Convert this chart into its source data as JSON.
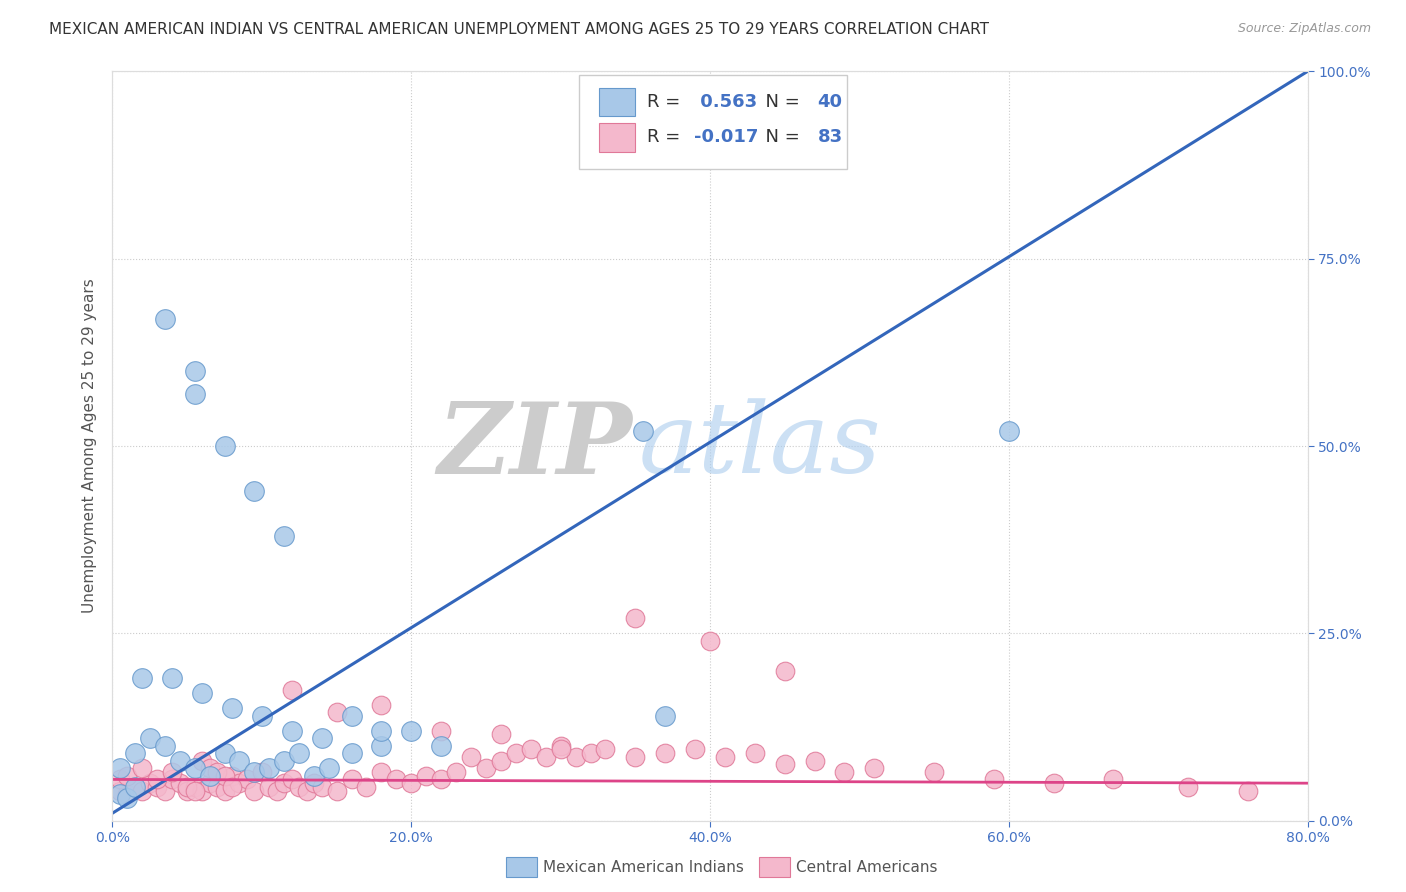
{
  "title": "MEXICAN AMERICAN INDIAN VS CENTRAL AMERICAN UNEMPLOYMENT AMONG AGES 25 TO 29 YEARS CORRELATION CHART",
  "source": "Source: ZipAtlas.com",
  "ylabel": "Unemployment Among Ages 25 to 29 years",
  "xlim": [
    0.0,
    0.8
  ],
  "ylim": [
    0.0,
    1.0
  ],
  "xtick_labels": [
    "0.0%",
    "20.0%",
    "40.0%",
    "60.0%",
    "80.0%"
  ],
  "xtick_vals": [
    0.0,
    0.2,
    0.4,
    0.6,
    0.8
  ],
  "ytick_labels": [
    "0.0%",
    "25.0%",
    "50.0%",
    "75.0%",
    "100.0%"
  ],
  "ytick_vals": [
    0.0,
    0.25,
    0.5,
    0.75,
    1.0
  ],
  "blue_color": "#a8c8e8",
  "blue_edge_color": "#6699cc",
  "pink_color": "#f4b8cc",
  "pink_edge_color": "#e07898",
  "blue_line_color": "#3366bb",
  "pink_line_color": "#dd4488",
  "R_blue": 0.563,
  "N_blue": 40,
  "R_pink": -0.017,
  "N_pink": 83,
  "legend_label_blue": "Mexican American Indians",
  "legend_label_pink": "Central Americans",
  "watermark_zip": "ZIP",
  "watermark_atlas": "atlas",
  "background_color": "#ffffff",
  "title_fontsize": 11,
  "axis_label_fontsize": 11,
  "tick_fontsize": 10,
  "blue_line_x0": 0.0,
  "blue_line_y0": 0.01,
  "blue_line_x1": 0.8,
  "blue_line_y1": 1.0,
  "pink_line_x0": 0.0,
  "pink_line_y0": 0.055,
  "pink_line_x1": 0.8,
  "pink_line_y1": 0.05,
  "blue_x": [
    0.035,
    0.055,
    0.055,
    0.075,
    0.095,
    0.115,
    0.02,
    0.04,
    0.06,
    0.08,
    0.1,
    0.12,
    0.14,
    0.16,
    0.18,
    0.005,
    0.015,
    0.025,
    0.035,
    0.045,
    0.055,
    0.065,
    0.075,
    0.085,
    0.095,
    0.105,
    0.115,
    0.125,
    0.135,
    0.145,
    0.16,
    0.18,
    0.2,
    0.22,
    0.355,
    0.37,
    0.005,
    0.01,
    0.6,
    0.015
  ],
  "blue_y": [
    0.67,
    0.6,
    0.57,
    0.5,
    0.44,
    0.38,
    0.19,
    0.19,
    0.17,
    0.15,
    0.14,
    0.12,
    0.11,
    0.14,
    0.1,
    0.07,
    0.09,
    0.11,
    0.1,
    0.08,
    0.07,
    0.06,
    0.09,
    0.08,
    0.065,
    0.07,
    0.08,
    0.09,
    0.06,
    0.07,
    0.09,
    0.12,
    0.12,
    0.1,
    0.52,
    0.14,
    0.035,
    0.03,
    0.52,
    0.045
  ],
  "pink_x": [
    0.005,
    0.01,
    0.015,
    0.02,
    0.025,
    0.03,
    0.035,
    0.04,
    0.045,
    0.05,
    0.055,
    0.06,
    0.065,
    0.07,
    0.075,
    0.08,
    0.085,
    0.09,
    0.095,
    0.1,
    0.105,
    0.11,
    0.115,
    0.12,
    0.125,
    0.13,
    0.135,
    0.14,
    0.15,
    0.16,
    0.17,
    0.18,
    0.19,
    0.2,
    0.21,
    0.22,
    0.23,
    0.24,
    0.25,
    0.26,
    0.27,
    0.28,
    0.29,
    0.3,
    0.31,
    0.32,
    0.33,
    0.35,
    0.37,
    0.39,
    0.41,
    0.43,
    0.45,
    0.47,
    0.49,
    0.51,
    0.55,
    0.59,
    0.63,
    0.67,
    0.72,
    0.76,
    0.005,
    0.01,
    0.02,
    0.03,
    0.04,
    0.05,
    0.055,
    0.06,
    0.065,
    0.07,
    0.075,
    0.08,
    0.12,
    0.15,
    0.18,
    0.22,
    0.26,
    0.3,
    0.35,
    0.4,
    0.45
  ],
  "pink_y": [
    0.04,
    0.035,
    0.045,
    0.04,
    0.05,
    0.045,
    0.04,
    0.055,
    0.05,
    0.04,
    0.045,
    0.04,
    0.05,
    0.045,
    0.04,
    0.06,
    0.05,
    0.055,
    0.04,
    0.065,
    0.045,
    0.04,
    0.05,
    0.055,
    0.045,
    0.04,
    0.05,
    0.045,
    0.04,
    0.055,
    0.045,
    0.065,
    0.055,
    0.05,
    0.06,
    0.055,
    0.065,
    0.085,
    0.07,
    0.08,
    0.09,
    0.095,
    0.085,
    0.1,
    0.085,
    0.09,
    0.095,
    0.085,
    0.09,
    0.095,
    0.085,
    0.09,
    0.075,
    0.08,
    0.065,
    0.07,
    0.065,
    0.055,
    0.05,
    0.055,
    0.045,
    0.04,
    0.055,
    0.06,
    0.07,
    0.055,
    0.065,
    0.045,
    0.04,
    0.08,
    0.07,
    0.065,
    0.06,
    0.045,
    0.175,
    0.145,
    0.155,
    0.12,
    0.115,
    0.095,
    0.27,
    0.24,
    0.2
  ]
}
